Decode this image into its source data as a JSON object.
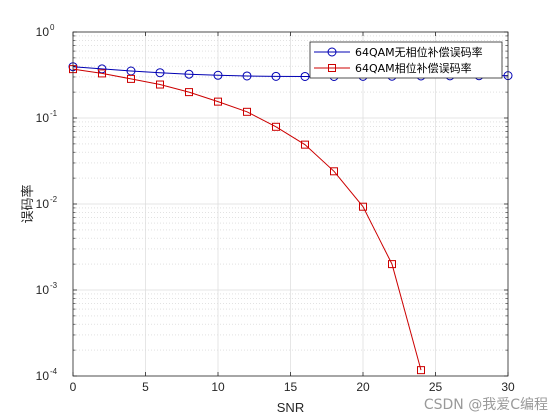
{
  "chart_data": {
    "type": "line",
    "xlabel": "SNR",
    "ylabel": "误码率",
    "xlim": [
      0,
      30
    ],
    "ylim": [
      0.0001,
      1
    ],
    "yscale": "log",
    "grid": true,
    "legend_placement": "top-right",
    "x_ticks": [
      0,
      5,
      10,
      15,
      20,
      25,
      30
    ],
    "y_ticks": [
      {
        "base": "10",
        "exp": "0",
        "value": 1
      },
      {
        "base": "10",
        "exp": "-1",
        "value": 0.1
      },
      {
        "base": "10",
        "exp": "-2",
        "value": 0.01
      },
      {
        "base": "10",
        "exp": "-3",
        "value": 0.001
      },
      {
        "base": "10",
        "exp": "-4",
        "value": 0.0001
      }
    ],
    "series": [
      {
        "name": "64QAM无相位补偿误码率",
        "color": "#0000b3",
        "marker": "circle",
        "x": [
          0,
          2,
          4,
          6,
          8,
          10,
          12,
          14,
          16,
          18,
          20,
          22,
          24,
          26,
          28,
          30
        ],
        "y": [
          0.395,
          0.372,
          0.352,
          0.336,
          0.323,
          0.314,
          0.308,
          0.305,
          0.304,
          0.304,
          0.305,
          0.306,
          0.308,
          0.309,
          0.31,
          0.311
        ]
      },
      {
        "name": "64QAM相位补偿误码率",
        "color": "#cc0000",
        "marker": "square",
        "x": [
          0,
          2,
          4,
          6,
          8,
          10,
          12,
          14,
          16,
          18,
          20,
          22,
          24
        ],
        "y": [
          0.37,
          0.33,
          0.285,
          0.245,
          0.2,
          0.155,
          0.118,
          0.079,
          0.049,
          0.024,
          0.0093,
          0.002,
          0.000117
        ]
      }
    ]
  },
  "watermark": "CSDN @我爱C编程"
}
